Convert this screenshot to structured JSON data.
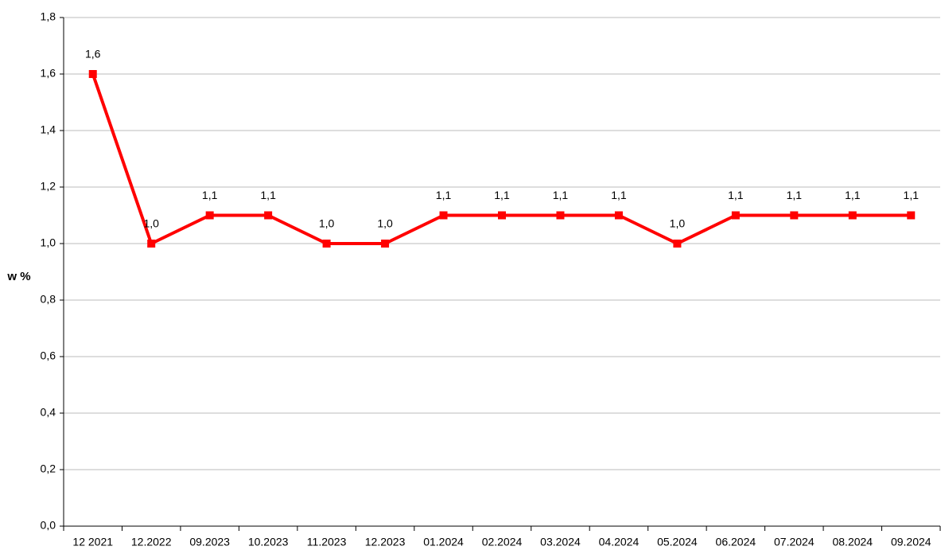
{
  "chart_data": {
    "type": "line",
    "y_label": "w %",
    "categories": [
      "12 2021",
      "12.2022",
      "09.2023",
      "10.2023",
      "11.2023",
      "12.2023",
      "01.2024",
      "02.2024",
      "03.2024",
      "04.2024",
      "05.2024",
      "06.2024",
      "07.2024",
      "08.2024",
      "09.2024"
    ],
    "series": [
      {
        "color": "#ff0000",
        "values": [
          1.6,
          1.0,
          1.1,
          1.1,
          1.0,
          1.0,
          1.1,
          1.1,
          1.1,
          1.1,
          1.0,
          1.1,
          1.1,
          1.1,
          1.1
        ],
        "value_labels": [
          "1,6",
          "1,0",
          "1,1",
          "1,1",
          "1,0",
          "1,0",
          "1,1",
          "1,1",
          "1,1",
          "1,1",
          "1,0",
          "1,1",
          "1,1",
          "1,1",
          "1,1"
        ]
      }
    ],
    "ylim": [
      0,
      1.8
    ],
    "yticks": [
      {
        "value": 0,
        "label": "0,0"
      },
      {
        "value": 0.2,
        "label": "0,2"
      },
      {
        "value": 0.4,
        "label": "0,4"
      },
      {
        "value": 0.6,
        "label": "0,6"
      },
      {
        "value": 0.8,
        "label": "0,8"
      },
      {
        "value": 1.0,
        "label": "1,0"
      },
      {
        "value": 1.2,
        "label": "1,2"
      },
      {
        "value": 1.4,
        "label": "1,4"
      },
      {
        "value": 1.6,
        "label": "1,6"
      },
      {
        "value": 1.8,
        "label": "1,8"
      }
    ],
    "grid": true
  }
}
